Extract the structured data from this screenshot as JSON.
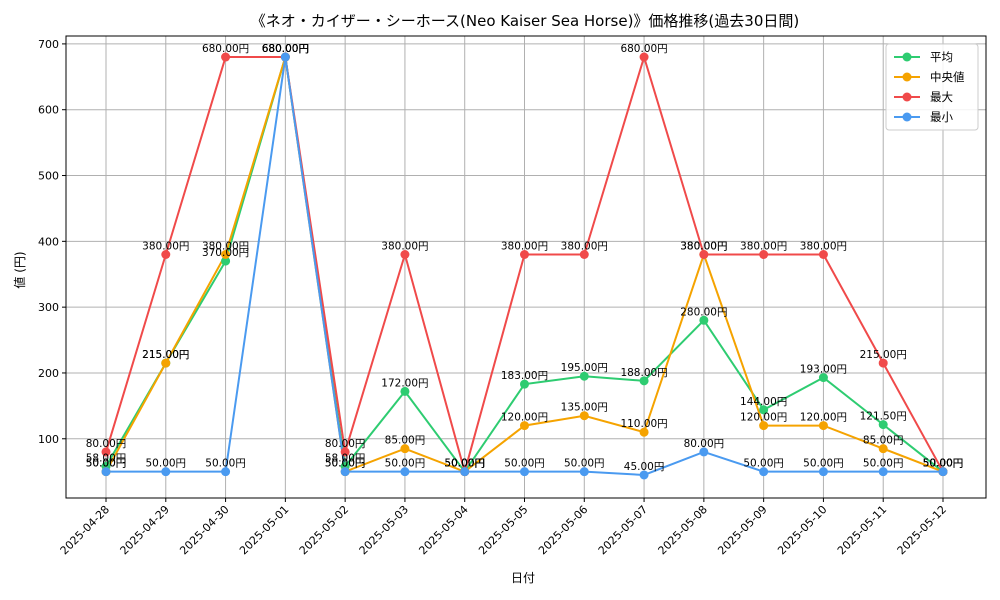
{
  "chart_data": {
    "type": "line",
    "title": "《ネオ・カイザー・シーホース(Neo Kaiser Sea Horse)》価格推移(過去30日間)",
    "xlabel": "日付",
    "ylabel": "値 (円)",
    "ylim": [
      10,
      712
    ],
    "yticks": [
      100,
      200,
      300,
      400,
      500,
      600,
      700
    ],
    "grid": true,
    "legend_position": "top-right",
    "categories": [
      "2025-04-28",
      "2025-04-29",
      "2025-04-30",
      "2025-05-01",
      "2025-05-02",
      "2025-05-03",
      "2025-05-04",
      "2025-05-05",
      "2025-05-06",
      "2025-05-07",
      "2025-05-08",
      "2025-05-09",
      "2025-05-10",
      "2025-05-11",
      "2025-05-12"
    ],
    "label_suffix": "円",
    "series": [
      {
        "name": "平均",
        "color": "#2ecc71",
        "values": [
          58,
          215,
          370,
          680,
          58,
          172,
          50,
          183,
          195,
          188,
          280,
          144,
          193,
          121.5,
          50
        ]
      },
      {
        "name": "中央値",
        "color": "#f5a300",
        "values": [
          50,
          215,
          380,
          680,
          50,
          85,
          50,
          120,
          135,
          110,
          380,
          120,
          120,
          85,
          50
        ]
      },
      {
        "name": "最大",
        "color": "#f04a4a",
        "values": [
          80,
          380,
          680,
          680,
          80,
          380,
          50,
          380,
          380,
          680,
          380,
          380,
          380,
          215,
          50
        ]
      },
      {
        "name": "最小",
        "color": "#4a9af0",
        "values": [
          50,
          50,
          50,
          680,
          50,
          50,
          50,
          50,
          50,
          45,
          80,
          50,
          50,
          50,
          50
        ]
      }
    ]
  }
}
